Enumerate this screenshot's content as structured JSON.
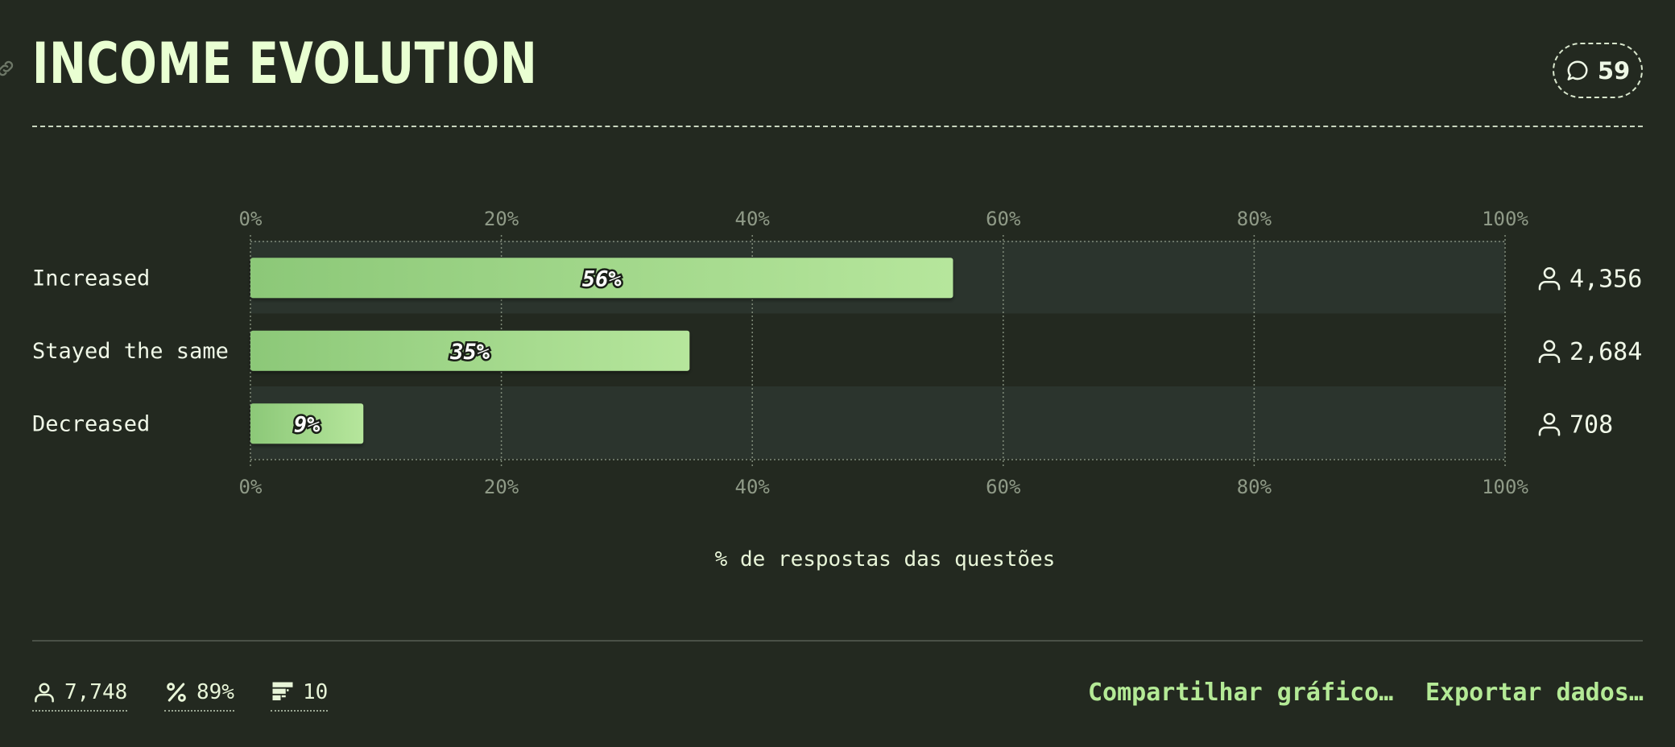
{
  "header": {
    "title": "INCOME EVOLUTION",
    "comments_count": "59"
  },
  "chart_data": {
    "type": "bar",
    "orientation": "horizontal",
    "categories": [
      "Increased",
      "Stayed the same",
      "Decreased"
    ],
    "values": [
      56,
      35,
      9
    ],
    "value_labels": [
      "56%",
      "35%",
      "9%"
    ],
    "counts": [
      "4,356",
      "2,684",
      "708"
    ],
    "xlim": [
      0,
      100
    ],
    "ticks": [
      "0%",
      "20%",
      "40%",
      "60%",
      "80%",
      "100%"
    ],
    "tick_values": [
      0,
      20,
      40,
      60,
      80,
      100
    ],
    "xlabel": "% de respostas das questões",
    "grid": true,
    "colors": {
      "bar_start": "#8cc878",
      "bar_end": "#b6e69c",
      "band": "#2b342d"
    }
  },
  "footer": {
    "respondents": "7,748",
    "percentage": "89%",
    "questions": "10",
    "share_label": "Compartilhar gráfico…",
    "export_label": "Exportar dados…"
  }
}
